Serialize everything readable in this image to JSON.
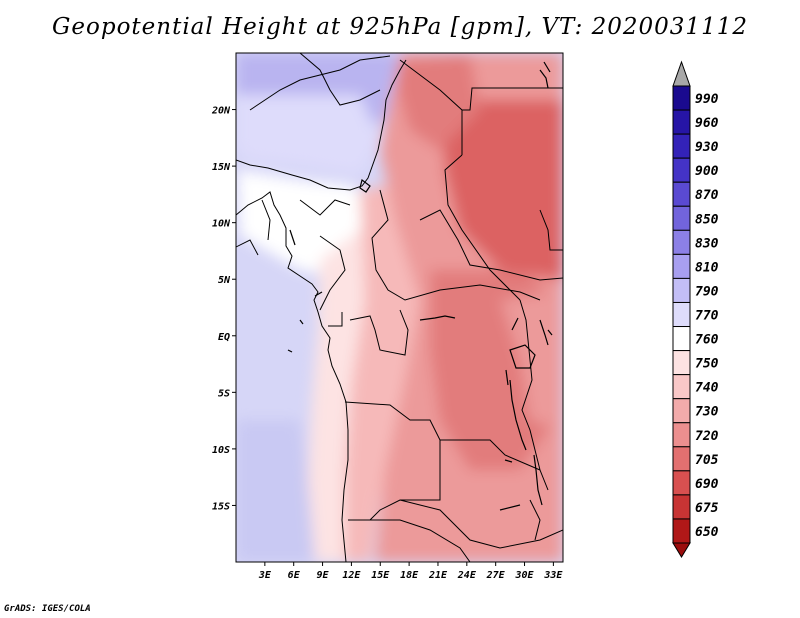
{
  "title": "Geopotential Height at 925hPa [gpm], VT: 2020031112",
  "credit": "GrADS: IGES/COLA",
  "map": {
    "lon_range": [
      0,
      34
    ],
    "lat_range": [
      -20,
      25
    ],
    "lat_ticks": [
      "20N",
      "15N",
      "10N",
      "5N",
      "EQ",
      "5S",
      "10S",
      "15S"
    ],
    "lon_ticks": [
      "3E",
      "6E",
      "9E",
      "12E",
      "15E",
      "18E",
      "21E",
      "24E",
      "27E",
      "30E",
      "33E"
    ]
  },
  "colorbar": {
    "levels": [
      {
        "label": "990",
        "color": "#1a0a8f"
      },
      {
        "label": "960",
        "color": "#2615a6"
      },
      {
        "label": "930",
        "color": "#3322b8"
      },
      {
        "label": "900",
        "color": "#4433c6"
      },
      {
        "label": "870",
        "color": "#5a4ad2"
      },
      {
        "label": "850",
        "color": "#7264dc"
      },
      {
        "label": "830",
        "color": "#8c80e6"
      },
      {
        "label": "810",
        "color": "#a89ff0"
      },
      {
        "label": "790",
        "color": "#c3bef6"
      },
      {
        "label": "770",
        "color": "#dedcfb"
      },
      {
        "label": "760",
        "color": "#ffffff"
      },
      {
        "label": "750",
        "color": "#fde3e3"
      },
      {
        "label": "740",
        "color": "#f9c8c8"
      },
      {
        "label": "730",
        "color": "#f3abab"
      },
      {
        "label": "720",
        "color": "#ec8f8f"
      },
      {
        "label": "705",
        "color": "#e37070"
      },
      {
        "label": "690",
        "color": "#d85050"
      },
      {
        "label": "675",
        "color": "#c83434"
      },
      {
        "label": "650",
        "color": "#b01818"
      }
    ],
    "over_color": "#a8a8a8",
    "under_color": "#9b0d0d"
  },
  "field_colors": {
    "ocean_west": "#d6d6f7",
    "ocean_southwest": "#c9c9f3",
    "sahara_north": "#b9b4f0",
    "sahara_mid": "#dedcfb",
    "west_africa": "#ffffff",
    "coast_pale": "#fde3e3",
    "interior_light": "#f6b9b9",
    "interior": "#ec9a9a",
    "interior_dark": "#e27b7b",
    "sudan_core": "#dc6262",
    "lakes": "#000000"
  }
}
